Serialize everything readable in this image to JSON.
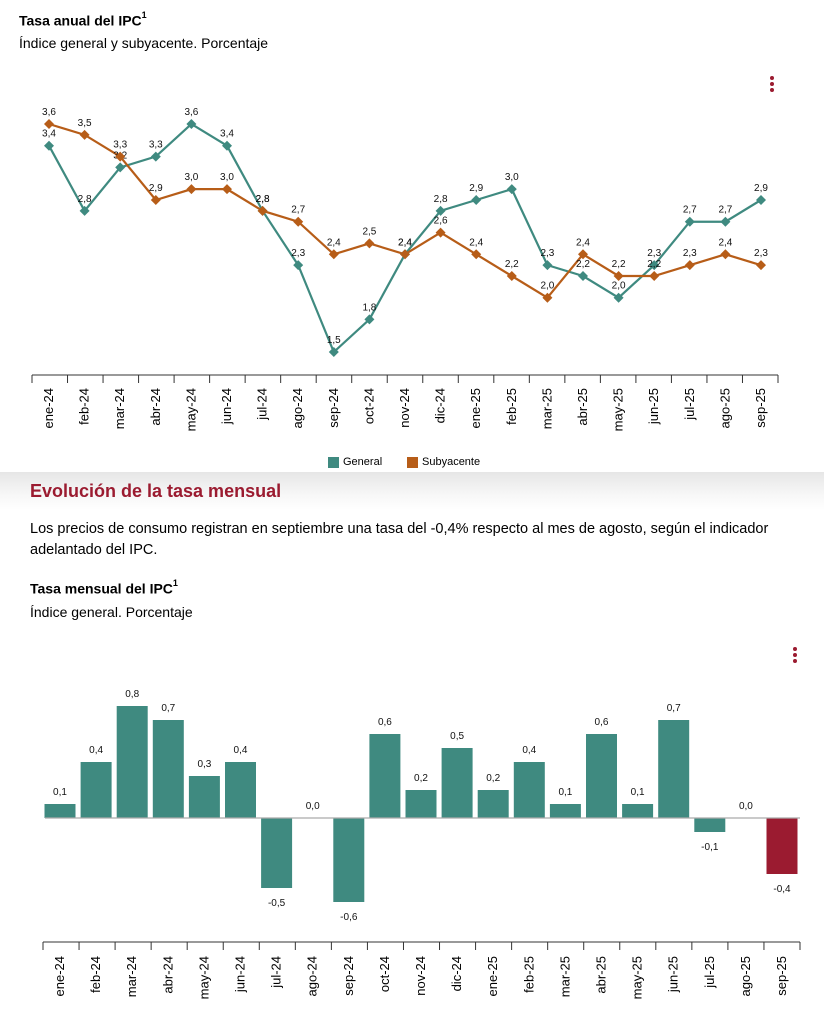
{
  "annual": {
    "title": "Tasa anual del IPC",
    "footnote": "1",
    "subtitle": "Índice general y subyacente. Porcentaje"
  },
  "section": {
    "heading": "Evolución de la tasa mensual",
    "text": "Los precios de consumo registran en septiembre una tasa del -0,4% respecto al mes de agosto, según el indicador adelantado del IPC."
  },
  "monthly": {
    "title": "Tasa mensual del IPC",
    "footnote": "1",
    "subtitle": "Índice general. Porcentaje"
  },
  "menu_icon": "more-vertical-icon",
  "chart_data": [
    {
      "type": "line",
      "title": "Tasa anual del IPC",
      "subtitle": "Índice general y subyacente. Porcentaje",
      "categories": [
        "ene-24",
        "feb-24",
        "mar-24",
        "abr-24",
        "may-24",
        "jun-24",
        "jul-24",
        "ago-24",
        "sep-24",
        "oct-24",
        "nov-24",
        "dic-24",
        "ene-25",
        "feb-25",
        "mar-25",
        "abr-25",
        "may-25",
        "jun-25",
        "jul-25",
        "ago-25",
        "sep-25"
      ],
      "series": [
        {
          "name": "General",
          "color": "#3f8a80",
          "values": [
            3.4,
            2.8,
            3.2,
            3.3,
            3.6,
            3.4,
            2.8,
            2.3,
            1.5,
            1.8,
            2.4,
            2.8,
            2.9,
            3.0,
            2.3,
            2.2,
            2.0,
            2.3,
            2.7,
            2.7,
            2.9
          ],
          "labels": [
            "3,4",
            "2,8",
            "3,2",
            "3,3",
            "3,6",
            "3,4",
            "2,8",
            "2,3",
            "1,5",
            "1,8",
            "2,4",
            "2,8",
            "2,9",
            "3,0",
            "2,3",
            "2,2",
            "2,0",
            "2,3",
            "2,7",
            "2,7",
            "2,9"
          ]
        },
        {
          "name": "Subyacente",
          "color": "#b75d18",
          "values": [
            3.6,
            3.5,
            3.3,
            2.9,
            3.0,
            3.0,
            2.8,
            2.7,
            2.4,
            2.5,
            2.4,
            2.6,
            2.4,
            2.2,
            2.0,
            2.4,
            2.2,
            2.2,
            2.3,
            2.4,
            2.3
          ],
          "labels": [
            "3,6",
            "3,5",
            "3,3",
            "2,9",
            "3,0",
            "3,0",
            "2,8",
            "2,7",
            "2,4",
            "2,5",
            "2,4",
            "2,6",
            "2,4",
            "2,2",
            "2,0",
            "2,4",
            "2,2",
            "2,2",
            "2,3",
            "2,4",
            "2,3"
          ]
        }
      ],
      "legend": [
        "General",
        "Subyacente"
      ],
      "legend_position": "bottom"
    },
    {
      "type": "bar",
      "title": "Tasa mensual del IPC",
      "subtitle": "Índice general. Porcentaje",
      "categories": [
        "ene-24",
        "feb-24",
        "mar-24",
        "abr-24",
        "may-24",
        "jun-24",
        "jul-24",
        "ago-24",
        "sep-24",
        "oct-24",
        "nov-24",
        "dic-24",
        "ene-25",
        "feb-25",
        "mar-25",
        "abr-25",
        "may-25",
        "jun-25",
        "jul-25",
        "ago-25",
        "sep-25"
      ],
      "values": [
        0.1,
        0.4,
        0.8,
        0.7,
        0.3,
        0.4,
        -0.5,
        0.0,
        -0.6,
        0.6,
        0.2,
        0.5,
        0.2,
        0.4,
        0.1,
        0.6,
        0.1,
        0.7,
        -0.1,
        0.0,
        -0.4
      ],
      "labels": [
        "0,1",
        "0,4",
        "0,8",
        "0,7",
        "0,3",
        "0,4",
        "-0,5",
        "0,0",
        "-0,6",
        "0,6",
        "0,2",
        "0,5",
        "0,2",
        "0,4",
        "0,1",
        "0,6",
        "0,1",
        "0,7",
        "-0,1",
        "0,0",
        "-0,4"
      ],
      "colors": {
        "default": "#3f8a80",
        "highlight": "#9b1b30"
      },
      "highlight_last": true
    }
  ]
}
